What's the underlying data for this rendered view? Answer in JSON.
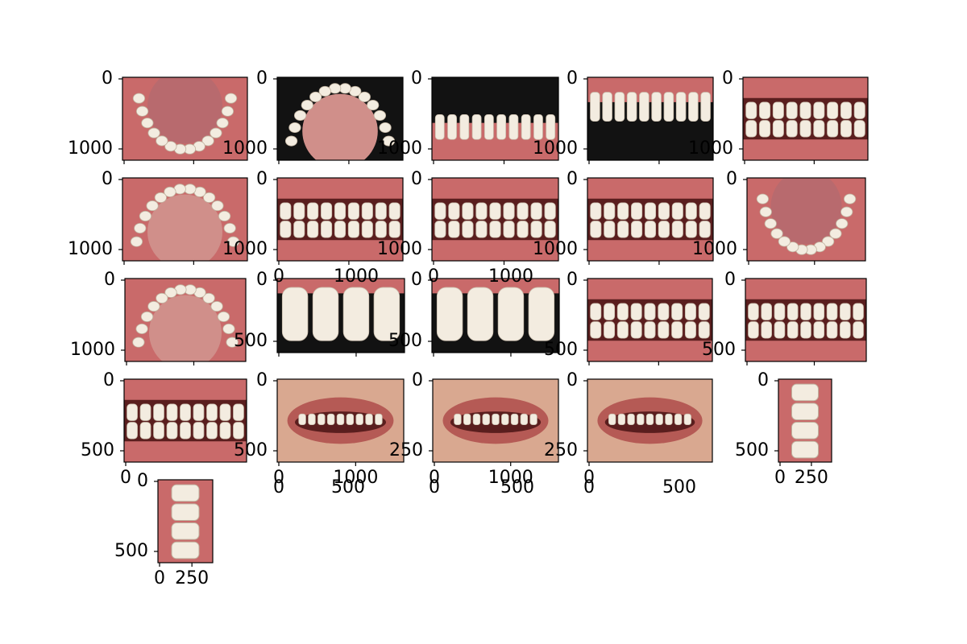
{
  "figure": {
    "background": "#ffffff",
    "panels": [
      {
        "id": "r1c1",
        "view": "lower-occlusal",
        "tone": "mouth",
        "yticks": [
          "0",
          "1000"
        ],
        "xticks": []
      },
      {
        "id": "r1c2",
        "view": "upper-occlusal",
        "tone": "dark",
        "yticks": [
          "0",
          "1000"
        ],
        "xticks": []
      },
      {
        "id": "r1c3",
        "view": "lower-front-arch",
        "tone": "dark",
        "yticks": [
          "0",
          "1000"
        ],
        "xticks": []
      },
      {
        "id": "r1c4",
        "view": "upper-front-smile",
        "tone": "dark",
        "yticks": [
          "0",
          "1000"
        ],
        "xticks": []
      },
      {
        "id": "r1c5",
        "view": "frontal-bite",
        "tone": "mouth",
        "yticks": [
          "0",
          "1000"
        ],
        "xticks": []
      },
      {
        "id": "r2c1",
        "view": "upper-occlusal",
        "tone": "mouth",
        "yticks": [
          "0",
          "1000"
        ],
        "xticks": []
      },
      {
        "id": "r2c2",
        "view": "lateral-bite",
        "tone": "mouth",
        "yticks": [
          "0",
          "1000"
        ],
        "xticks": []
      },
      {
        "id": "r2c3",
        "view": "frontal-bite",
        "tone": "mouth",
        "yticks": [
          "0",
          "1000"
        ],
        "xticks": []
      },
      {
        "id": "r2c4",
        "view": "lateral-bite",
        "tone": "mouth",
        "yticks": [
          "0",
          "1000"
        ],
        "xticks": []
      },
      {
        "id": "r2c5",
        "view": "lower-occlusal",
        "tone": "mouth",
        "yticks": [
          "0",
          "1000"
        ],
        "xticks": []
      },
      {
        "id": "r3c1",
        "view": "upper-occlusal",
        "tone": "mouth",
        "yticks": [
          "0",
          "1000"
        ],
        "xticks": []
      },
      {
        "id": "r3c2",
        "view": "incisor-closeup",
        "tone": "dark",
        "yticks": [
          "0",
          "500"
        ],
        "xticks": [
          "0",
          "1000"
        ]
      },
      {
        "id": "r3c3",
        "view": "incisor-closeup",
        "tone": "dark",
        "yticks": [
          "0",
          "500"
        ],
        "xticks": [
          "0",
          "1000"
        ]
      },
      {
        "id": "r3c4",
        "view": "frontal-bite",
        "tone": "mouth",
        "yticks": [
          "0",
          "500"
        ],
        "xticks": []
      },
      {
        "id": "r3c5",
        "view": "frontal-bite",
        "tone": "mouth",
        "yticks": [
          "0",
          "500"
        ],
        "xticks": []
      },
      {
        "id": "r4c1",
        "view": "frontal-bite",
        "tone": "mouth",
        "yticks": [
          "0",
          "500"
        ],
        "xticks": [
          "0"
        ]
      },
      {
        "id": "r4c2",
        "view": "smile-lips",
        "tone": "skin",
        "yticks": [
          "0",
          "500"
        ],
        "xticks": [
          "0",
          "1000"
        ]
      },
      {
        "id": "r4c3",
        "view": "smile-lips",
        "tone": "skin",
        "yticks": [
          "0",
          "250"
        ],
        "xticks": [
          "0",
          "1000"
        ]
      },
      {
        "id": "r4c4",
        "view": "smile-lips",
        "tone": "skin",
        "yticks": [
          "0",
          "250"
        ],
        "xticks": [
          "0"
        ]
      },
      {
        "id": "r4c5",
        "view": "molar-strip",
        "tone": "gum",
        "yticks": [
          "0",
          "500"
        ],
        "xticks": [
          "0",
          "250"
        ]
      },
      {
        "id": "r5c1",
        "view": "molar-strip",
        "tone": "gum",
        "yticks": [
          "0",
          "500"
        ],
        "xticks": [
          "0",
          "250"
        ]
      }
    ],
    "standalone_labels": [
      {
        "id": "r4-xticks-c2",
        "text": "0"
      },
      {
        "id": "r4-xticks-c2b",
        "text": "500"
      },
      {
        "id": "r4-xticks-c3",
        "text": "0"
      },
      {
        "id": "r4-xticks-c3b",
        "text": "500"
      },
      {
        "id": "r4-xticks-c4",
        "text": "0"
      },
      {
        "id": "r4-xticks-c4b",
        "text": "500"
      }
    ],
    "colors": {
      "gum": "#c96a6a",
      "mouth_dark": "#5a1e1e",
      "tooth": "#f3ece0",
      "lip": "#b55a55",
      "skin": "#d9a890",
      "dark_bg": "#121212"
    }
  }
}
